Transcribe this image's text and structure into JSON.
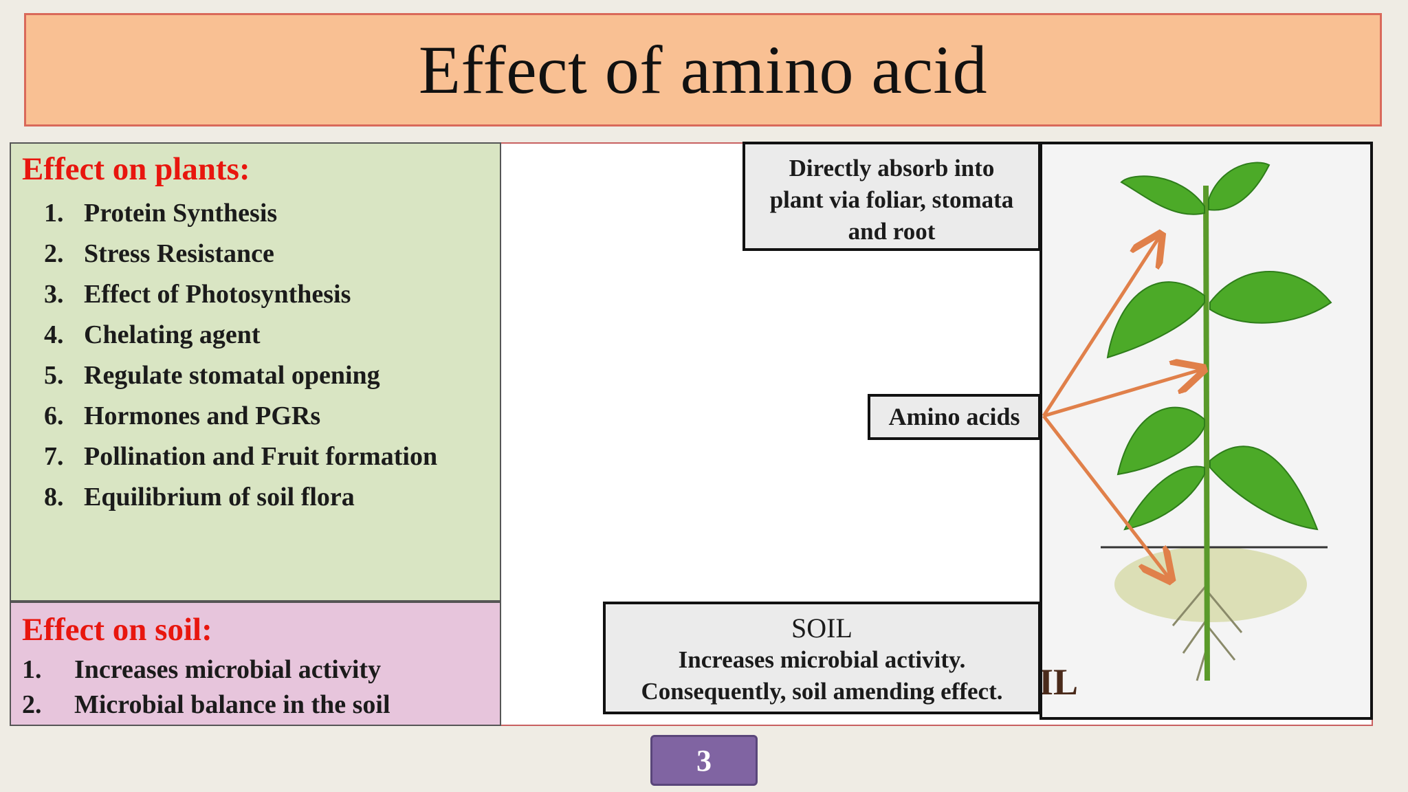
{
  "title": "Effect of amino acid",
  "plants_panel": {
    "heading": "Effect on plants:",
    "items": [
      {
        "num": "1.",
        "label": "Protein Synthesis"
      },
      {
        "num": "2.",
        "label": "Stress Resistance"
      },
      {
        "num": "3.",
        "label": "Effect of Photosynthesis"
      },
      {
        "num": "4.",
        "label": "Chelating agent"
      },
      {
        "num": "5.",
        "label": "Regulate stomatal opening"
      },
      {
        "num": "6.",
        "label": "Hormones and PGRs"
      },
      {
        "num": "7.",
        "label": "Pollination and Fruit formation"
      },
      {
        "num": "8.",
        "label": "Equilibrium of soil flora"
      }
    ]
  },
  "soil_panel": {
    "heading": "Effect on soil:",
    "items": [
      {
        "num": "1.",
        "label": "Increases microbial activity"
      },
      {
        "num": "2.",
        "label": "Microbial balance in the soil"
      }
    ]
  },
  "diagram": {
    "absorb_line1": "Directly absorb into",
    "absorb_line2": "plant via foliar, stomata",
    "absorb_line3": "and root",
    "amino_label": "Amino acids",
    "soil_title": "SOIL",
    "soil_line1": "Increases microbial activity.",
    "soil_line2": "Consequently, soil amending effect.",
    "image_fragment": "IL",
    "arrow_color": "#e0804a",
    "stem_color": "#5a9a2a",
    "leaf_color": "#4caa28"
  },
  "page_number": "3"
}
